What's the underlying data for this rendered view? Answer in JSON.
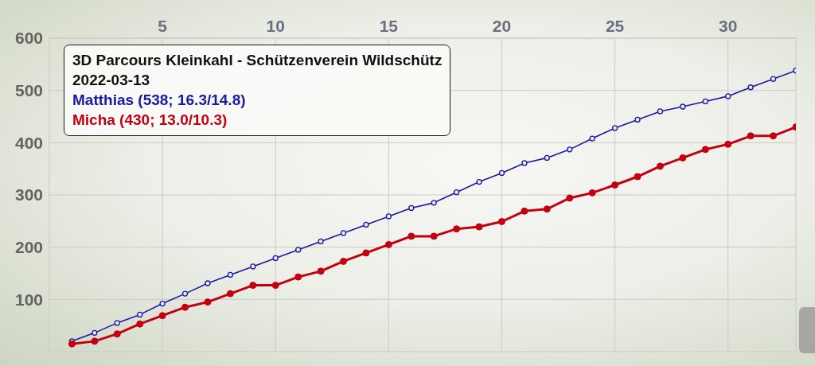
{
  "chart_data": {
    "type": "line",
    "title": "3D Parcours Kleinkahl - Schützenverein Wildschütz",
    "subtitle": "2022-03-13",
    "x": [
      1,
      2,
      3,
      4,
      5,
      6,
      7,
      8,
      9,
      10,
      11,
      12,
      13,
      14,
      15,
      16,
      17,
      18,
      19,
      20,
      21,
      22,
      23,
      24,
      25,
      26,
      27,
      28,
      29,
      30,
      31,
      32,
      33
    ],
    "series": [
      {
        "name": "Matthias (538; 16.3/14.8)",
        "color": "#1a1aa0",
        "values": [
          20,
          36,
          55,
          71,
          92,
          111,
          131,
          147,
          163,
          179,
          195,
          211,
          227,
          243,
          259,
          275,
          285,
          305,
          325,
          342,
          361,
          371,
          387,
          408,
          428,
          444,
          460,
          469,
          479,
          489,
          506,
          522,
          538
        ]
      },
      {
        "name": "Micha (430; 13.0/10.3)",
        "color": "#c40010",
        "values": [
          15,
          20,
          34,
          53,
          69,
          85,
          95,
          111,
          127,
          127,
          143,
          154,
          173,
          189,
          205,
          221,
          221,
          235,
          239,
          249,
          269,
          273,
          294,
          304,
          319,
          335,
          355,
          371,
          387,
          397,
          413,
          413,
          430
        ]
      }
    ],
    "xlim": [
      0,
      33
    ],
    "xticks": [
      5,
      10,
      15,
      20,
      25,
      30
    ],
    "ylim": [
      0,
      600
    ],
    "yticks": [
      {
        "value": 0,
        "label": null
      },
      100,
      200,
      300,
      400,
      500,
      600
    ],
    "grid": true,
    "legend": "top left",
    "marker": "circle"
  }
}
